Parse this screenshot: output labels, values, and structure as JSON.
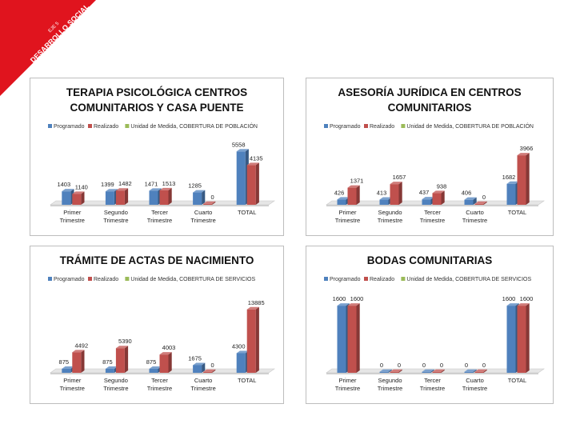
{
  "banner": {
    "line1": "EJE 5",
    "line2": "DESARROLLO SOCIAL",
    "color": "#e0141e"
  },
  "colors": {
    "programado": "#4f81bd",
    "realizado": "#c0504d",
    "unidad": "#9bbb59"
  },
  "chart_data": [
    {
      "type": "bar",
      "title": [
        "TERAPIA PSICOLÓGICA CENTROS",
        "COMUNITARIOS Y CASA PUENTE"
      ],
      "legend": [
        "Programado",
        "Realizado",
        "Unidad de Medida, COBERTURA DE POBLACIÓN"
      ],
      "categories": [
        [
          "Primer",
          "Trimestre"
        ],
        [
          "Segundo",
          "Trimestre"
        ],
        [
          "Tercer",
          "Trimestre"
        ],
        [
          "Cuarto",
          "Trimestre"
        ],
        [
          "TOTAL"
        ]
      ],
      "series": [
        {
          "name": "Programado",
          "values": [
            1403,
            1399,
            1471,
            1285,
            5558
          ]
        },
        {
          "name": "Realizado",
          "values": [
            1140,
            1482,
            1513,
            0,
            4135
          ]
        }
      ],
      "labels": [
        [
          "1403",
          "1140"
        ],
        [
          "1399",
          "1482"
        ],
        [
          "1471",
          "1513"
        ],
        [
          "1285",
          "0"
        ],
        [
          "5558",
          "4135"
        ]
      ],
      "ylim": [
        0,
        6500
      ]
    },
    {
      "type": "bar",
      "title": [
        "ASESORÍA JURÍDICA EN CENTROS",
        "COMUNITARIOS"
      ],
      "legend": [
        "Programado",
        "Realizado",
        "Unidad de Medida, COBERTURA DE POBLACIÓN"
      ],
      "categories": [
        [
          "Primer",
          "Trimestre"
        ],
        [
          "Segundo",
          "Trimestre"
        ],
        [
          "Tercer",
          "Trimestre"
        ],
        [
          "Cuarto",
          "Trimestre"
        ],
        [
          "TOTAL"
        ]
      ],
      "series": [
        {
          "name": "Programado",
          "values": [
            426,
            413,
            437,
            406,
            1682
          ]
        },
        {
          "name": "Realizado",
          "values": [
            1371,
            1657,
            938,
            0,
            3966
          ]
        }
      ],
      "labels": [
        [
          "426",
          "1371"
        ],
        [
          "413",
          "1657"
        ],
        [
          "437",
          "938"
        ],
        [
          "406",
          "0"
        ],
        [
          "1682",
          "3966"
        ]
      ],
      "ylim": [
        0,
        5000
      ]
    },
    {
      "type": "bar",
      "title": [
        "TRÁMITE DE ACTAS DE NACIMIENTO"
      ],
      "legend": [
        "Programado",
        "Realizado",
        "Unidad de Medida, COBERTURA DE SERVICIOS"
      ],
      "categories": [
        [
          "Primer",
          "Trimestre"
        ],
        [
          "Segundo",
          "Trimestre"
        ],
        [
          "Tercer",
          "Trimestre"
        ],
        [
          "Cuarto",
          "Trimestre"
        ],
        [
          "TOTAL"
        ]
      ],
      "series": [
        {
          "name": "Programado",
          "values": [
            875,
            875,
            875,
            1675,
            4300
          ]
        },
        {
          "name": "Realizado",
          "values": [
            4492,
            5390,
            4003,
            0,
            13885
          ]
        }
      ],
      "labels": [
        [
          "875",
          "4492"
        ],
        [
          "875",
          "5390"
        ],
        [
          "875",
          "4003"
        ],
        [
          "1675",
          "0"
        ],
        [
          "4300",
          "13885"
        ]
      ],
      "ylim": [
        0,
        17000
      ]
    },
    {
      "type": "bar",
      "title": [
        "BODAS COMUNITARIAS"
      ],
      "legend": [
        "Programado",
        "Realizado",
        "Unidad de Medida, COBERTURA DE SERVICIOS"
      ],
      "categories": [
        [
          "Primer",
          "Trimestre"
        ],
        [
          "Segundo",
          "Trimestre"
        ],
        [
          "Tercer",
          "Trimestre"
        ],
        [
          "Cuarto",
          "Trimestre"
        ],
        [
          "TOTAL"
        ]
      ],
      "series": [
        {
          "name": "Programado",
          "values": [
            1600,
            0,
            0,
            0,
            1600
          ]
        },
        {
          "name": "Realizado",
          "values": [
            1600,
            0,
            0,
            0,
            1600
          ]
        }
      ],
      "labels": [
        [
          "1600",
          "1600"
        ],
        [
          "0",
          "0"
        ],
        [
          "0",
          "0"
        ],
        [
          "0",
          "0"
        ],
        [
          "1600",
          "1600"
        ]
      ],
      "ylim": [
        0,
        1850
      ]
    }
  ]
}
